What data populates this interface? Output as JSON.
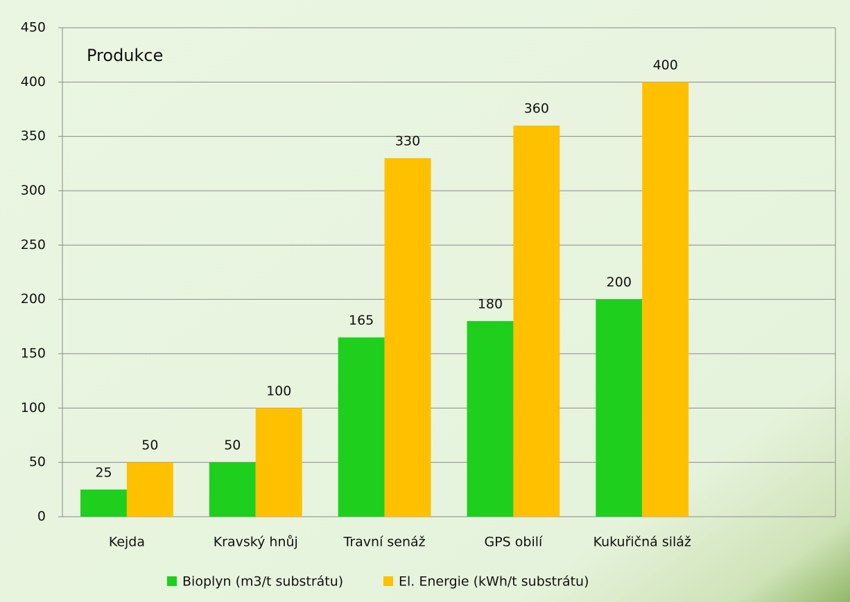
{
  "chart_data": {
    "type": "bar",
    "annotation": "Produkce",
    "categories": [
      "Kejda",
      "Kravský hnůj",
      "Travní senáž",
      "GPS obilí",
      "Kukuřičná siláž",
      null
    ],
    "series": [
      {
        "name": "Bioplyn (m3/t substrátu)",
        "color": "#1ecf1e",
        "values": [
          25,
          50,
          165,
          180,
          200,
          null
        ]
      },
      {
        "name": "El. Energie (kWh/t substrátu)",
        "color": "#ffc000",
        "values": [
          50,
          100,
          330,
          360,
          400,
          null
        ]
      }
    ],
    "ylim": [
      0,
      450
    ],
    "yticks": [
      0,
      50,
      100,
      150,
      200,
      250,
      300,
      350,
      400,
      450
    ],
    "grid": true,
    "legend": "bottom"
  }
}
